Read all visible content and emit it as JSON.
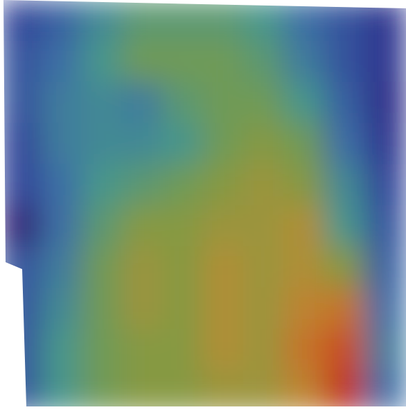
{
  "chart_data": {
    "type": "heatmap",
    "cells": [
      [
        0.15,
        0.25,
        0.4,
        0.5,
        0.5,
        0.5,
        0.45,
        0.3,
        0.2,
        0.1
      ],
      [
        0.2,
        0.3,
        0.45,
        0.55,
        0.55,
        0.55,
        0.5,
        0.35,
        0.2,
        0.1
      ],
      [
        0.2,
        0.35,
        0.4,
        0.35,
        0.5,
        0.55,
        0.55,
        0.45,
        0.25,
        0.08
      ],
      [
        0.15,
        0.35,
        0.4,
        0.4,
        0.45,
        0.55,
        0.6,
        0.55,
        0.3,
        0.1
      ],
      [
        0.15,
        0.3,
        0.45,
        0.5,
        0.55,
        0.6,
        0.65,
        0.6,
        0.4,
        0.15
      ],
      [
        0.02,
        0.3,
        0.5,
        0.6,
        0.6,
        0.65,
        0.65,
        0.7,
        0.45,
        0.2
      ],
      [
        0.2,
        0.35,
        0.55,
        0.65,
        0.6,
        0.7,
        0.65,
        0.7,
        0.6,
        0.25
      ],
      [
        0.2,
        0.4,
        0.55,
        0.65,
        0.6,
        0.7,
        0.65,
        0.75,
        0.8,
        0.3
      ],
      [
        0.2,
        0.45,
        0.55,
        0.6,
        0.6,
        0.7,
        0.65,
        0.8,
        0.9,
        0.35
      ],
      [
        0.2,
        0.45,
        0.55,
        0.6,
        0.6,
        0.65,
        0.65,
        0.75,
        0.95,
        0.3
      ]
    ],
    "color_range": [
      0,
      1
    ],
    "tick_labels": false
  }
}
